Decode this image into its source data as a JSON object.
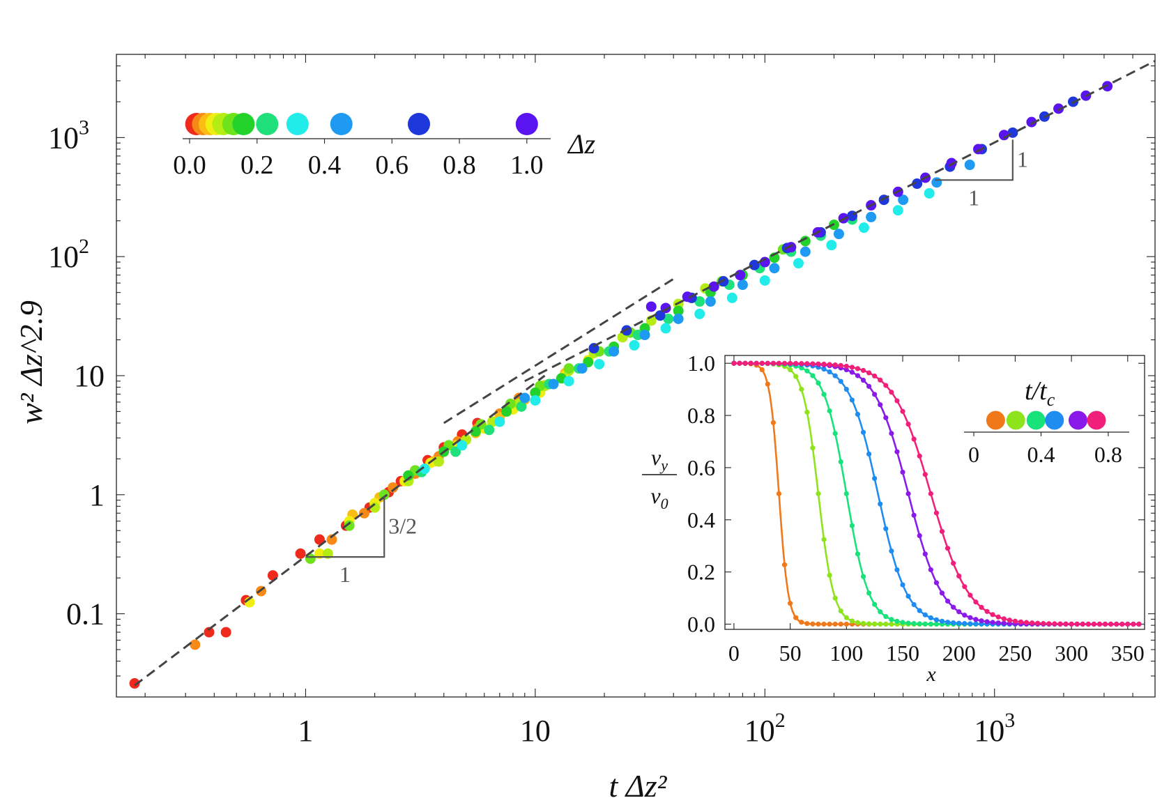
{
  "chart_data": {
    "type": "scatter",
    "main": {
      "xlabel": "t Δz²",
      "ylabel": "w² Δz^2.9",
      "x_scale": "log",
      "y_scale": "log",
      "xlim": [
        0.15,
        5000
      ],
      "ylim": [
        0.02,
        5000
      ],
      "x_ticks": [
        {
          "v": 1,
          "label": "1"
        },
        {
          "v": 10,
          "label": "10"
        },
        {
          "v": 100,
          "label": "10",
          "sup": "2"
        },
        {
          "v": 1000,
          "label": "10",
          "sup": "3"
        }
      ],
      "y_ticks": [
        {
          "v": 0.1,
          "label": "0.1"
        },
        {
          "v": 1,
          "label": "1"
        },
        {
          "v": 10,
          "label": "10"
        },
        {
          "v": 100,
          "label": "10",
          "sup": "2"
        },
        {
          "v": 1000,
          "label": "10",
          "sup": "3"
        }
      ],
      "fits": [
        {
          "name": "slope 3/2 fit",
          "x": [
            0.18,
            11
          ],
          "y": [
            0.025,
            10
          ]
        },
        {
          "name": "slope 1/2 guide",
          "x": [
            4,
            40
          ],
          "y": [
            4,
            65
          ]
        },
        {
          "name": "slope 1 fit",
          "x": [
            9,
            5000
          ],
          "y": [
            9,
            4400
          ]
        }
      ],
      "slope_markers": [
        {
          "name": "triangle-3-2",
          "x0": 1.0,
          "x1": 2.2,
          "y0": 0.3,
          "run_label": "1",
          "rise_label": "3/2",
          "slope": 1.5
        },
        {
          "name": "triangle-1",
          "x0": 550,
          "x1": 1200,
          "y0": 440,
          "run_label": "1",
          "rise_label": "1",
          "slope": 1.0
        }
      ],
      "series": [
        {
          "dz": 0.02,
          "color": "#ee2a1c",
          "x": [
            0.18,
            0.38,
            0.45,
            0.55,
            0.72,
            0.95,
            1.15,
            1.5,
            1.9,
            2.3,
            2.6,
            3.0,
            3.4,
            4.0,
            4.8,
            5.6
          ],
          "y": [
            0.026,
            0.07,
            0.07,
            0.13,
            0.21,
            0.32,
            0.42,
            0.55,
            0.78,
            1.05,
            1.3,
            1.6,
            1.95,
            2.5,
            3.2,
            4.0
          ]
        },
        {
          "dz": 0.04,
          "color": "#f78a16",
          "x": [
            0.33,
            0.64,
            1.3,
            1.8,
            2.4,
            3.0,
            3.8,
            4.6,
            5.6,
            7.0,
            8.5
          ],
          "y": [
            0.055,
            0.155,
            0.42,
            0.7,
            1.15,
            1.5,
            2.1,
            2.8,
            3.6,
            4.8,
            6.5
          ]
        },
        {
          "dz": 0.06,
          "color": "#fbbd14",
          "x": [
            1.6,
            2.1,
            2.8,
            3.6,
            4.5,
            5.5,
            7.0,
            9.0,
            11.0,
            13.5
          ],
          "y": [
            0.68,
            0.95,
            1.35,
            1.9,
            2.6,
            3.3,
            4.5,
            6.3,
            8.3,
            10.5
          ]
        },
        {
          "dz": 0.08,
          "color": "#f0ee10",
          "x": [
            0.57,
            1.15,
            1.55,
            2.0,
            2.7,
            3.5,
            4.6,
            6.0,
            8.0,
            10.5,
            13.5,
            17.0
          ],
          "y": [
            0.125,
            0.32,
            0.6,
            0.85,
            1.3,
            1.85,
            2.6,
            3.6,
            5.2,
            7.2,
            10.0,
            13.5
          ]
        },
        {
          "dz": 0.1,
          "color": "#b4ec14",
          "x": [
            1.25,
            2.0,
            2.8,
            3.8,
            5.0,
            6.5,
            8.5,
            11.0,
            14.0,
            18.0,
            24.0,
            32.0,
            42.0,
            55.0
          ],
          "y": [
            0.32,
            0.78,
            1.3,
            1.9,
            2.9,
            4.1,
            5.8,
            8.2,
            11.0,
            15.5,
            21.0,
            29.0,
            40.0,
            54.0
          ]
        },
        {
          "dz": 0.13,
          "color": "#6ee31c",
          "x": [
            1.05,
            1.55,
            2.2,
            3.0,
            4.2,
            5.8,
            7.8,
            10.5,
            14.0,
            19.0,
            26.0,
            35.0,
            48.0,
            65.0,
            90.0,
            120.0
          ],
          "y": [
            0.29,
            0.55,
            1.0,
            1.6,
            2.6,
            3.9,
            5.8,
            8.2,
            11.5,
            16.0,
            23.0,
            32.0,
            45.0,
            62.0,
            85.0,
            115.0
          ]
        },
        {
          "dz": 0.16,
          "color": "#22d22a",
          "x": [
            2.8,
            4.0,
            5.5,
            7.5,
            10.0,
            13.0,
            17.0,
            22.0,
            30.0,
            42.0,
            58.0,
            80.0,
            110.0,
            150.0,
            200.0
          ],
          "y": [
            1.45,
            2.3,
            3.4,
            5.0,
            7.2,
            9.5,
            13.0,
            17.5,
            25.0,
            35.0,
            50.0,
            70.0,
            98.0,
            135.0,
            185.0
          ]
        },
        {
          "dz": 0.23,
          "color": "#20e07c",
          "x": [
            3.2,
            4.5,
            6.3,
            8.7,
            11.5,
            15.5,
            21.0,
            28.0,
            38.0,
            52.0,
            70.0,
            95.0,
            130.0,
            175.0,
            240.0
          ],
          "y": [
            1.55,
            2.3,
            3.5,
            5.5,
            8.5,
            11.5,
            16.0,
            22.0,
            30.0,
            42.0,
            58.0,
            80.0,
            110.0,
            150.0,
            205.0
          ]
        },
        {
          "dz": 0.32,
          "color": "#22ecea",
          "x": [
            3.3,
            4.8,
            7.0,
            10.0,
            14.0,
            19.0,
            27.0,
            37.0,
            52.0,
            72.0,
            100.0,
            140.0,
            195.0,
            270.0,
            380.0,
            520.0
          ],
          "y": [
            1.65,
            2.6,
            4.1,
            6.2,
            9.0,
            12.5,
            18.0,
            25.0,
            33.0,
            45.0,
            63.0,
            88.0,
            125.0,
            175.0,
            245.0,
            340.0
          ]
        },
        {
          "dz": 0.45,
          "color": "#1e9af2",
          "x": [
            9.0,
            12.0,
            16.0,
            22.0,
            30.0,
            42.0,
            58.0,
            80.0,
            110.0,
            150.0,
            210.0,
            290.0,
            400.0,
            560.0,
            780.0
          ],
          "y": [
            6.5,
            8.5,
            11.5,
            16.0,
            22.0,
            30.0,
            42.0,
            58.0,
            80.0,
            110.0,
            155.0,
            215.0,
            300.0,
            420.0,
            590.0
          ]
        },
        {
          "dz": 0.68,
          "color": "#1e38dc",
          "x": [
            18.0,
            25.0,
            35.0,
            48.0,
            66.0,
            90.0,
            125.0,
            175.0,
            240.0,
            330.0,
            460.0,
            640.0,
            880.0,
            1200.0,
            1650.0,
            2200.0
          ],
          "y": [
            17.0,
            24.0,
            32.0,
            45.0,
            62.0,
            85.0,
            118.0,
            160.0,
            220.0,
            300.0,
            410.0,
            570.0,
            800.0,
            1100.0,
            1500.0,
            2000.0
          ]
        },
        {
          "dz": 1.0,
          "color": "#5a14f0",
          "x": [
            32.0,
            37.0,
            46.0,
            60.0,
            78.0,
            100.0,
            130.0,
            170.0,
            220.0,
            290.0,
            380.0,
            500.0,
            650.0,
            850.0,
            1100.0,
            1450.0,
            1900.0,
            2500.0,
            3100.0
          ],
          "y": [
            38.0,
            37.0,
            46.0,
            56.0,
            70.0,
            90.0,
            120.0,
            160.0,
            210.0,
            270.0,
            350.0,
            460.0,
            610.0,
            800.0,
            1050.0,
            1350.0,
            1750.0,
            2250.0,
            2700.0
          ]
        }
      ],
      "legend": {
        "title": "Δz",
        "ticks": [
          "0.0",
          "0.2",
          "0.4",
          "0.6",
          "0.8",
          "1.0"
        ],
        "tick_values": [
          0,
          0.2,
          0.4,
          0.6,
          0.8,
          1.0
        ]
      }
    },
    "inset": {
      "type": "line",
      "xlabel": "x",
      "ylabel_num": "v",
      "ylabel_num_sub": "y",
      "ylabel_den": "v",
      "ylabel_den_sub": "0",
      "xlim": [
        -8,
        365
      ],
      "ylim": [
        -0.02,
        1.03
      ],
      "x_ticks": [
        "0",
        "50",
        "100",
        "150",
        "200",
        "250",
        "300",
        "350"
      ],
      "x_tick_values": [
        0,
        50,
        100,
        150,
        200,
        250,
        300,
        350
      ],
      "y_ticks": [
        "0.0",
        "0.2",
        "0.4",
        "0.6",
        "0.8",
        "1.0"
      ],
      "y_tick_values": [
        0,
        0.2,
        0.4,
        0.6,
        0.8,
        1.0
      ],
      "curves": [
        {
          "t_over_tc": 0.13,
          "color": "#f07818",
          "x50": 40,
          "width": 9
        },
        {
          "t_over_tc": 0.25,
          "color": "#8ee41c",
          "x50": 75,
          "width": 15
        },
        {
          "t_over_tc": 0.37,
          "color": "#18e27a",
          "x50": 100,
          "width": 22
        },
        {
          "t_over_tc": 0.48,
          "color": "#1e8cf0",
          "x50": 128,
          "width": 28
        },
        {
          "t_over_tc": 0.62,
          "color": "#8a1ae8",
          "x50": 155,
          "width": 33
        },
        {
          "t_over_tc": 0.73,
          "color": "#f0207a",
          "x50": 175,
          "width": 37
        }
      ],
      "legend": {
        "title": "t/t",
        "title_sub": "c",
        "ticks": [
          "0",
          "0.4",
          "0.8"
        ],
        "tick_values": [
          0,
          0.4,
          0.8
        ]
      }
    }
  }
}
